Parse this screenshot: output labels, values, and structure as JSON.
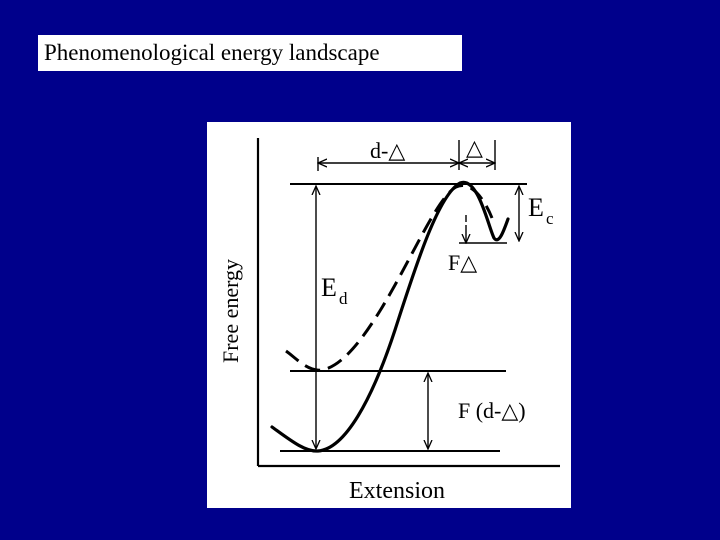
{
  "title": "Phenomenological energy landscape",
  "diagram": {
    "y_axis_label": "Free energy",
    "x_axis_label": "Extension",
    "label_d_minus_delta": "d-△",
    "label_delta": "△",
    "label_Ec_main": "E",
    "label_Ec_sub": "c",
    "label_F_delta": "F△",
    "label_Ed_main": "E",
    "label_Ed_sub": "d",
    "label_F_d_minus_delta": "F (d-△)"
  },
  "colors": {
    "background": "#00008b",
    "panel": "#ffffff",
    "ink": "#000000"
  }
}
